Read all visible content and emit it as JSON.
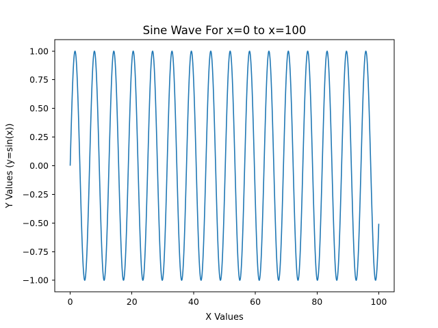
{
  "chart_data": {
    "type": "line",
    "title": "Sine Wave For x=0 to x=100",
    "xlabel": "X Values",
    "ylabel": "Y Values (y=sin(x))",
    "xlim": [
      -5,
      105
    ],
    "ylim": [
      -1.1,
      1.1
    ],
    "grid": false,
    "xticks": [
      0,
      20,
      40,
      60,
      80,
      100
    ],
    "xtick_labels": [
      "0",
      "20",
      "40",
      "60",
      "80",
      "100"
    ],
    "yticks": [
      1.0,
      0.75,
      0.5,
      0.25,
      0.0,
      -0.25,
      -0.5,
      -0.75,
      -1.0
    ],
    "ytick_labels": [
      "1.00",
      "0.75",
      "0.50",
      "0.25",
      "0.00",
      "−0.25",
      "−0.50",
      "−0.75",
      "−1.00"
    ],
    "series": [
      {
        "function": "sin(x)",
        "x_start": 0,
        "x_end": 100,
        "sample_count": 1000,
        "color": "#1f77b4"
      }
    ]
  }
}
